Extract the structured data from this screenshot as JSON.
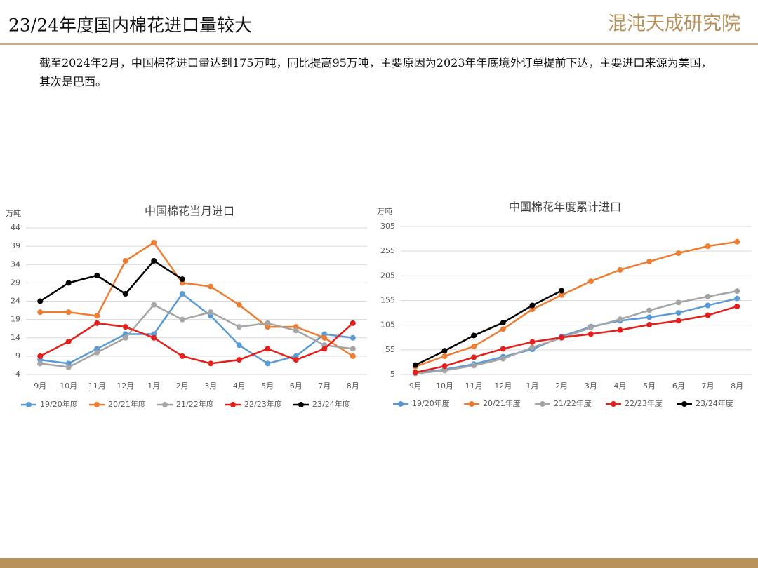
{
  "header": {
    "title": "23/24年度国内棉花进口量较大",
    "logo": "混沌天成研究院"
  },
  "text": "截至2024年2月，中国棉花进口量达到175万吨，同比提高95万吨，主要原因为2023年年底境外订单提前下达，主要进口来源为美国，其次是巴西。",
  "chart_data": [
    {
      "type": "line",
      "title": "中国棉花当月进口",
      "unit": "万吨",
      "categories": [
        "9月",
        "10月",
        "11月",
        "12月",
        "1月",
        "2月",
        "3月",
        "4月",
        "5月",
        "6月",
        "7月",
        "8月"
      ],
      "ylim": [
        4,
        44
      ],
      "yticks": [
        4,
        9,
        14,
        19,
        24,
        29,
        34,
        39,
        44
      ],
      "grid": true,
      "legend": "bottom",
      "series": [
        {
          "name": "19/20年度",
          "color": "#5b9bd5",
          "values": [
            8,
            7,
            11,
            15,
            15,
            26,
            20,
            12,
            7,
            9,
            15,
            14
          ]
        },
        {
          "name": "20/21年度",
          "color": "#ed7d31",
          "values": [
            21,
            21,
            20,
            35,
            40,
            29,
            28,
            23,
            17,
            17,
            14,
            9
          ]
        },
        {
          "name": "21/22年度",
          "color": "#a5a5a5",
          "values": [
            7,
            6,
            10,
            14,
            23,
            19,
            21,
            17,
            18,
            16,
            12,
            11
          ]
        },
        {
          "name": "22/23年度",
          "color": "#e3201c",
          "values": [
            9,
            13,
            18,
            17,
            14,
            9,
            7,
            8,
            11,
            8,
            11,
            18
          ]
        },
        {
          "name": "23/24年度",
          "color": "#000000",
          "values": [
            24,
            29,
            31,
            26,
            35,
            30,
            null,
            null,
            null,
            null,
            null,
            null
          ]
        }
      ]
    },
    {
      "type": "line",
      "title": "中国棉花年度累计进口",
      "unit": "万吨",
      "categories": [
        "9月",
        "10月",
        "11月",
        "12月",
        "1月",
        "2月",
        "3月",
        "4月",
        "5月",
        "6月",
        "7月",
        "8月"
      ],
      "ylim": [
        5,
        305
      ],
      "yticks": [
        5,
        55,
        105,
        155,
        205,
        255,
        305
      ],
      "grid": true,
      "legend": "bottom",
      "series": [
        {
          "name": "19/20年度",
          "color": "#5b9bd5",
          "values": [
            8,
            15,
            26,
            41,
            56,
            82,
            102,
            114,
            121,
            130,
            145,
            159
          ]
        },
        {
          "name": "20/21年度",
          "color": "#ed7d31",
          "values": [
            21,
            42,
            62,
            97,
            137,
            166,
            194,
            217,
            234,
            251,
            265,
            274
          ]
        },
        {
          "name": "21/22年度",
          "color": "#a5a5a5",
          "values": [
            7,
            13,
            23,
            37,
            60,
            79,
            100,
            117,
            135,
            151,
            163,
            174
          ]
        },
        {
          "name": "22/23年度",
          "color": "#e3201c",
          "values": [
            9,
            22,
            40,
            57,
            71,
            80,
            87,
            95,
            106,
            114,
            125,
            143
          ]
        },
        {
          "name": "23/24年度",
          "color": "#000000",
          "values": [
            24,
            53,
            84,
            110,
            145,
            175,
            null,
            null,
            null,
            null,
            null,
            null
          ]
        }
      ]
    }
  ]
}
